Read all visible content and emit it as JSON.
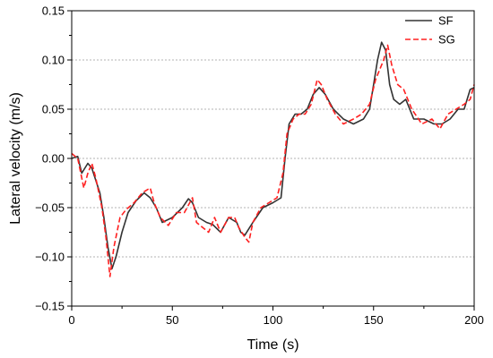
{
  "chart_data": {
    "type": "line",
    "title": "",
    "xlabel": "Time (s)",
    "ylabel": "Lateral velocity (m/s)",
    "xlim": [
      0,
      200
    ],
    "ylim": [
      -0.15,
      0.15
    ],
    "xticks": [
      0,
      50,
      100,
      150,
      200
    ],
    "yticks": [
      -0.15,
      -0.1,
      -0.05,
      0.0,
      0.05,
      0.1,
      0.15
    ],
    "xtick_labels": [
      "0",
      "50",
      "100",
      "150",
      "200"
    ],
    "ytick_labels": [
      "−0.15",
      "−0.10",
      "−0.05",
      "0.00",
      "0.05",
      "0.10",
      "0.15"
    ],
    "grid": "horizontal dashed",
    "legend_position": "top-right",
    "series": [
      {
        "name": "SF",
        "color": "#333333",
        "style": "solid",
        "x": [
          0,
          3,
          5,
          8,
          10,
          14,
          16,
          18,
          20,
          22,
          25,
          28,
          32,
          36,
          39,
          42,
          45,
          50,
          55,
          58,
          60,
          63,
          67,
          70,
          74,
          78,
          82,
          84,
          86,
          90,
          95,
          100,
          104,
          106,
          108,
          111,
          114,
          117,
          120,
          123,
          126,
          130,
          135,
          140,
          145,
          148,
          150,
          152,
          154,
          156,
          158,
          160,
          163,
          166,
          170,
          175,
          180,
          184,
          188,
          192,
          195,
          198,
          200
        ],
        "values": [
          0.0,
          0.002,
          -0.015,
          -0.005,
          -0.01,
          -0.035,
          -0.06,
          -0.09,
          -0.112,
          -0.1,
          -0.075,
          -0.055,
          -0.043,
          -0.035,
          -0.04,
          -0.05,
          -0.065,
          -0.06,
          -0.05,
          -0.041,
          -0.045,
          -0.06,
          -0.065,
          -0.067,
          -0.075,
          -0.06,
          -0.065,
          -0.075,
          -0.078,
          -0.065,
          -0.05,
          -0.045,
          -0.04,
          0.0,
          0.035,
          0.045,
          0.045,
          0.05,
          0.065,
          0.072,
          0.065,
          0.05,
          0.04,
          0.035,
          0.04,
          0.05,
          0.075,
          0.1,
          0.118,
          0.11,
          0.075,
          0.06,
          0.055,
          0.06,
          0.04,
          0.04,
          0.035,
          0.035,
          0.04,
          0.05,
          0.05,
          0.07,
          0.072
        ]
      },
      {
        "name": "SG",
        "color": "#ff2020",
        "style": "dashed",
        "x": [
          0,
          3,
          6,
          8,
          10,
          12,
          15,
          17,
          19,
          21,
          24,
          27,
          31,
          35,
          39,
          41,
          44,
          48,
          52,
          56,
          60,
          62,
          65,
          68,
          71,
          74,
          78,
          81,
          83,
          86,
          88,
          90,
          94,
          98,
          102,
          105,
          107,
          110,
          113,
          116,
          119,
          122,
          124,
          127,
          131,
          135,
          140,
          144,
          148,
          151,
          153,
          155,
          157,
          159,
          162,
          165,
          169,
          174,
          179,
          183,
          187,
          191,
          195,
          198,
          200
        ],
        "values": [
          0.005,
          0.0,
          -0.03,
          -0.015,
          -0.005,
          -0.02,
          -0.05,
          -0.08,
          -0.12,
          -0.09,
          -0.06,
          -0.052,
          -0.045,
          -0.035,
          -0.03,
          -0.045,
          -0.06,
          -0.068,
          -0.055,
          -0.055,
          -0.04,
          -0.065,
          -0.07,
          -0.075,
          -0.06,
          -0.075,
          -0.06,
          -0.06,
          -0.07,
          -0.08,
          -0.085,
          -0.065,
          -0.05,
          -0.045,
          -0.04,
          -0.015,
          0.025,
          0.04,
          0.045,
          0.045,
          0.055,
          0.08,
          0.075,
          0.06,
          0.045,
          0.035,
          0.04,
          0.045,
          0.055,
          0.08,
          0.09,
          0.1,
          0.115,
          0.095,
          0.075,
          0.07,
          0.05,
          0.035,
          0.04,
          0.03,
          0.045,
          0.05,
          0.055,
          0.06,
          0.075
        ]
      }
    ]
  }
}
